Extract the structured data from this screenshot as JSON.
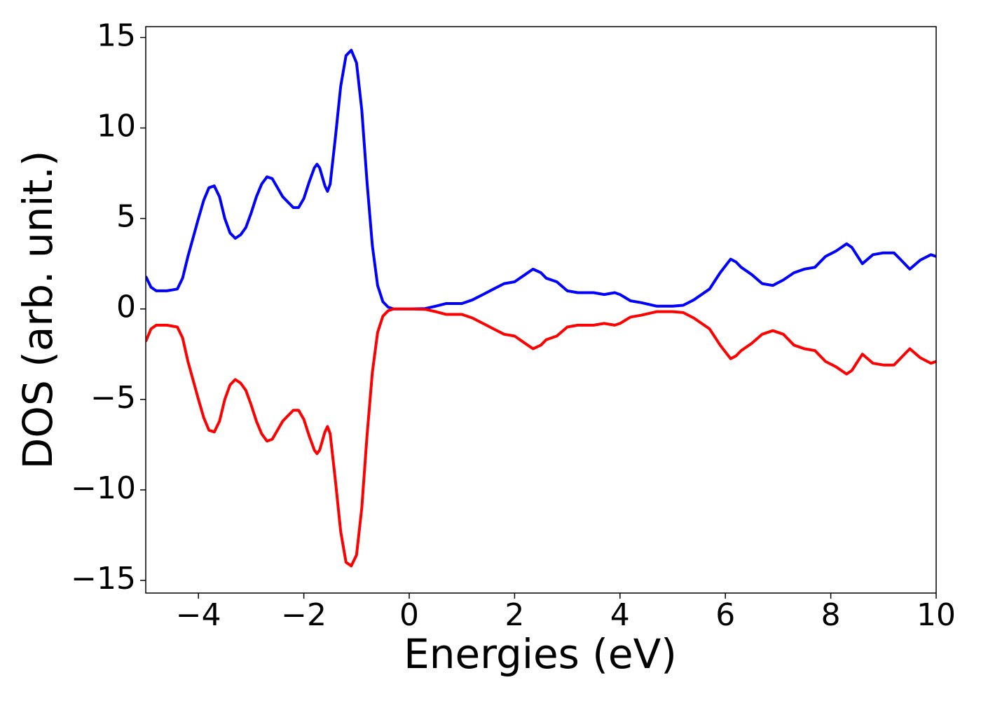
{
  "chart_data": {
    "type": "line",
    "x_label": "Energies (eV)",
    "y_label": "DOS (arb. unit.)",
    "x": [
      -5,
      -4.9,
      -4.8,
      -4.6,
      -4.4,
      -4.3,
      -4.2,
      -4.0,
      -3.9,
      -3.8,
      -3.7,
      -3.6,
      -3.5,
      -3.4,
      -3.3,
      -3.2,
      -3.1,
      -3.0,
      -2.9,
      -2.8,
      -2.7,
      -2.6,
      -2.5,
      -2.4,
      -2.3,
      -2.2,
      -2.1,
      -2.0,
      -1.9,
      -1.8,
      -1.75,
      -1.7,
      -1.6,
      -1.55,
      -1.5,
      -1.4,
      -1.3,
      -1.2,
      -1.1,
      -1.0,
      -0.9,
      -0.8,
      -0.7,
      -0.6,
      -0.5,
      -0.4,
      -0.3,
      0,
      0.3,
      0.5,
      0.7,
      1.0,
      1.2,
      1.4,
      1.6,
      1.8,
      2.0,
      2.2,
      2.35,
      2.5,
      2.6,
      2.8,
      3.0,
      3.2,
      3.5,
      3.7,
      3.9,
      4.0,
      4.2,
      4.4,
      4.7,
      5.0,
      5.2,
      5.4,
      5.7,
      5.9,
      6.1,
      6.2,
      6.3,
      6.5,
      6.7,
      6.9,
      7.1,
      7.3,
      7.5,
      7.7,
      7.9,
      8.1,
      8.3,
      8.4,
      8.6,
      8.8,
      9.0,
      9.2,
      9.3,
      9.5,
      9.7,
      9.9,
      10
    ],
    "series": [
      {
        "color": "#0000ff",
        "values": [
          1.8,
          1.2,
          1.0,
          1.0,
          1.1,
          1.7,
          2.9,
          5.0,
          6.0,
          6.7,
          6.8,
          6.2,
          5.0,
          4.2,
          3.9,
          4.1,
          4.5,
          5.3,
          6.2,
          6.9,
          7.3,
          7.2,
          6.7,
          6.2,
          5.9,
          5.6,
          5.6,
          6.1,
          7.0,
          7.8,
          8.0,
          7.8,
          6.8,
          6.5,
          6.9,
          9.5,
          12.3,
          14.0,
          14.3,
          13.6,
          11.0,
          7.0,
          3.5,
          1.3,
          0.4,
          0.1,
          0.0,
          0.0,
          0.02,
          0.15,
          0.3,
          0.3,
          0.5,
          0.8,
          1.1,
          1.4,
          1.5,
          1.9,
          2.2,
          2.0,
          1.7,
          1.5,
          1.0,
          0.9,
          0.9,
          0.8,
          0.9,
          0.8,
          0.45,
          0.35,
          0.15,
          0.15,
          0.2,
          0.5,
          1.1,
          2.0,
          2.75,
          2.6,
          2.3,
          1.9,
          1.4,
          1.3,
          1.6,
          2.0,
          2.2,
          2.3,
          2.9,
          3.2,
          3.6,
          3.4,
          2.5,
          3.0,
          3.1,
          3.1,
          2.8,
          2.2,
          2.7,
          3.0,
          2.9
        ]
      },
      {
        "color": "#ff0000",
        "values": [
          -1.8,
          -1.1,
          -0.9,
          -0.9,
          -1.0,
          -1.6,
          -2.9,
          -5.0,
          -6.0,
          -6.7,
          -6.8,
          -6.2,
          -5.0,
          -4.2,
          -3.9,
          -4.1,
          -4.5,
          -5.3,
          -6.2,
          -6.9,
          -7.3,
          -7.2,
          -6.7,
          -6.2,
          -5.9,
          -5.6,
          -5.6,
          -6.1,
          -7.0,
          -7.8,
          -8.0,
          -7.8,
          -6.8,
          -6.5,
          -6.9,
          -9.5,
          -12.3,
          -14.0,
          -14.2,
          -13.6,
          -11.0,
          -7.0,
          -3.5,
          -1.3,
          -0.4,
          -0.1,
          0.0,
          0.0,
          -0.02,
          -0.15,
          -0.3,
          -0.3,
          -0.5,
          -0.8,
          -1.1,
          -1.4,
          -1.5,
          -1.9,
          -2.2,
          -2.0,
          -1.7,
          -1.5,
          -1.0,
          -0.9,
          -0.9,
          -0.8,
          -0.9,
          -0.8,
          -0.45,
          -0.35,
          -0.15,
          -0.15,
          -0.2,
          -0.5,
          -1.1,
          -2.0,
          -2.75,
          -2.6,
          -2.3,
          -1.9,
          -1.4,
          -1.2,
          -1.4,
          -2.0,
          -2.2,
          -2.3,
          -2.9,
          -3.2,
          -3.6,
          -3.4,
          -2.5,
          -3.0,
          -3.1,
          -3.1,
          -2.8,
          -2.2,
          -2.7,
          -3.0,
          -2.9
        ]
      }
    ],
    "xlim": [
      -5,
      10
    ],
    "ylim": [
      -15.7,
      15.6
    ],
    "xticks": [
      {
        "value": -4,
        "label": "−4"
      },
      {
        "value": -2,
        "label": "−2"
      },
      0,
      2,
      4,
      6,
      8,
      10
    ],
    "yticks": [
      {
        "value": -15,
        "label": "−15"
      },
      {
        "value": -10,
        "label": "−10"
      },
      {
        "value": -5,
        "label": "−5"
      },
      0,
      5,
      10,
      15
    ],
    "grid": false
  }
}
